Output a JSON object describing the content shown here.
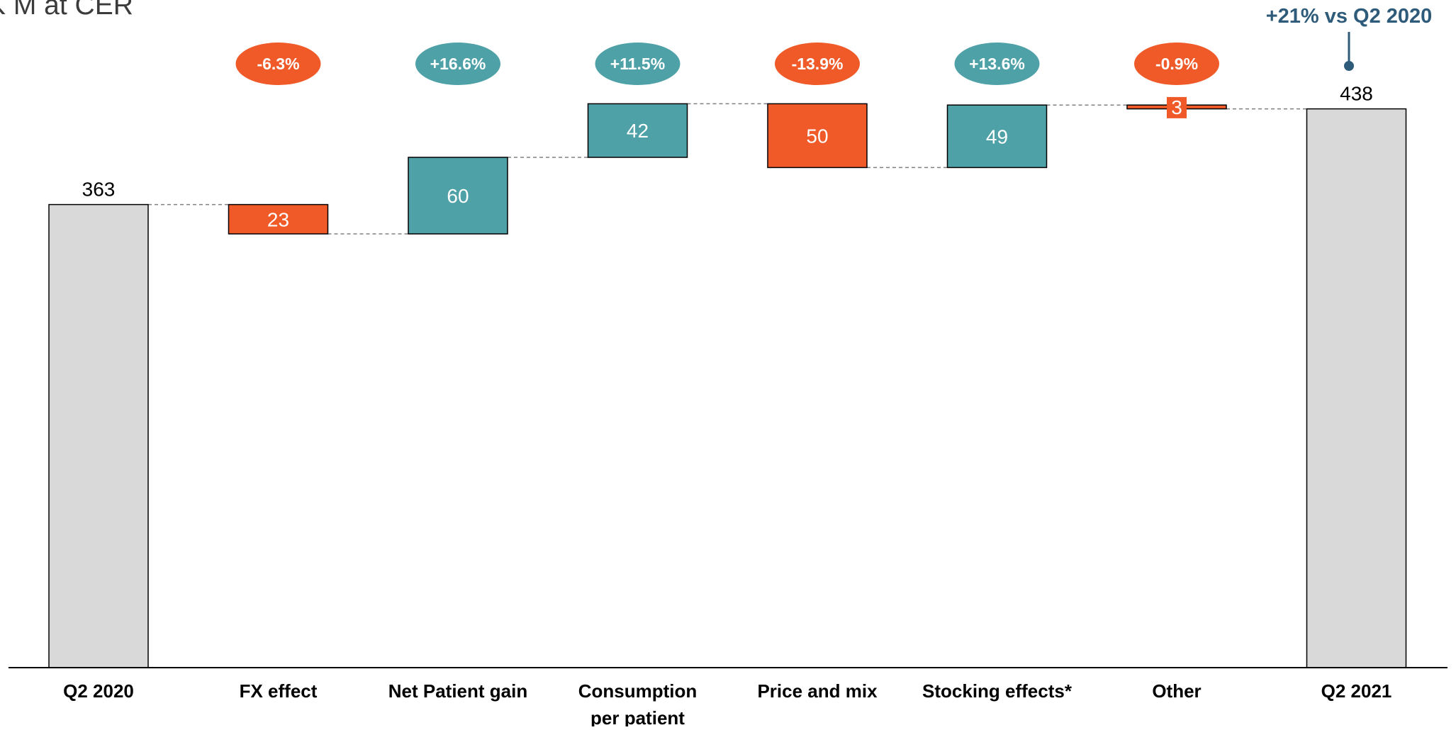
{
  "chart_data": {
    "type": "waterfall",
    "unit_label": "K M at CER",
    "total_callout": "+21% vs Q2 2020",
    "ylim": [
      0,
      460
    ],
    "grid": false,
    "categories": [
      "Q2 2020",
      "FX effect",
      "Net Patient gain",
      "Consumption per patient",
      "Price and mix",
      "Stocking effects*",
      "Other",
      "Q2 2021"
    ],
    "category_lines": [
      [
        "Q2 2020"
      ],
      [
        "FX effect"
      ],
      [
        "Net Patient gain"
      ],
      [
        "Consumption",
        "per patient"
      ],
      [
        "Price and mix"
      ],
      [
        "Stocking effects*"
      ],
      [
        "Other"
      ],
      [
        "Q2 2021"
      ]
    ],
    "steps": [
      {
        "category": "Q2 2020",
        "kind": "total",
        "value": 363,
        "label": "363",
        "pct": null
      },
      {
        "category": "FX effect",
        "kind": "decrease",
        "value": -23,
        "label": "23",
        "pct": "-6.3%"
      },
      {
        "category": "Net Patient gain",
        "kind": "increase",
        "value": 60,
        "label": "60",
        "pct": "+16.6%"
      },
      {
        "category": "Consumption per patient",
        "kind": "increase",
        "value": 42,
        "label": "42",
        "pct": "+11.5%"
      },
      {
        "category": "Price and mix",
        "kind": "decrease",
        "value": -50,
        "label": "50",
        "pct": "-13.9%"
      },
      {
        "category": "Stocking effects*",
        "kind": "increase",
        "value": 49,
        "label": "49",
        "pct": "+13.6%"
      },
      {
        "category": "Other",
        "kind": "decrease",
        "value": -3,
        "label": "3",
        "pct": "-0.9%"
      },
      {
        "category": "Q2 2021",
        "kind": "total",
        "value": 438,
        "label": "438",
        "pct": null
      }
    ],
    "colors": {
      "total": "#d9d9d9",
      "increase": "#4ea1a7",
      "decrease": "#f05a28",
      "connector": "#808080",
      "axis": "#000000",
      "callout": "#2e5b79"
    }
  }
}
